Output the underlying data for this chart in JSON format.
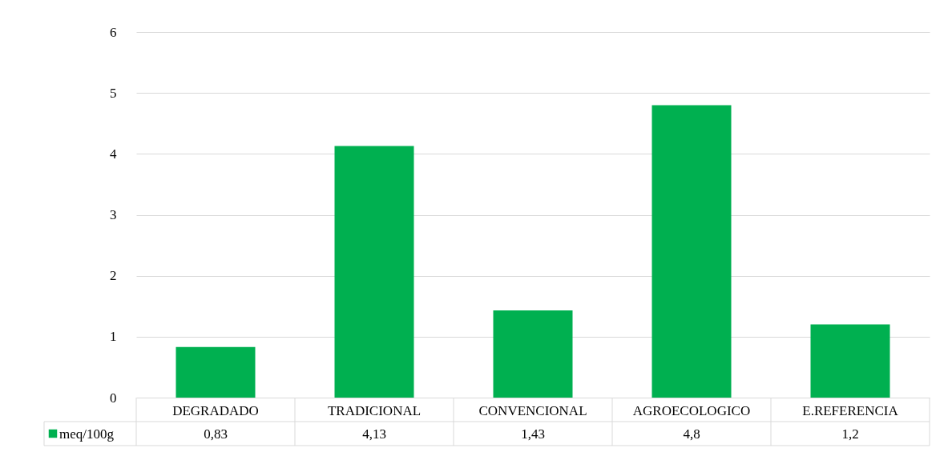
{
  "chart_data": {
    "type": "bar",
    "categories": [
      "DEGRADADO",
      "TRADICIONAL",
      "CONVENCIONAL",
      "AGROECOLOGICO",
      "E.REFERENCIA"
    ],
    "series": [
      {
        "name": "meq/100g",
        "color": "#00b050",
        "values": [
          0.83,
          4.13,
          1.43,
          4.8,
          1.2
        ],
        "value_labels": [
          "0,83",
          "4,13",
          "1,43",
          "4,8",
          "1,2"
        ]
      }
    ],
    "ylim": [
      0,
      6
    ],
    "yticks": [
      0,
      1,
      2,
      3,
      4,
      5,
      6
    ],
    "grid": "y",
    "legend": "bottom left"
  }
}
